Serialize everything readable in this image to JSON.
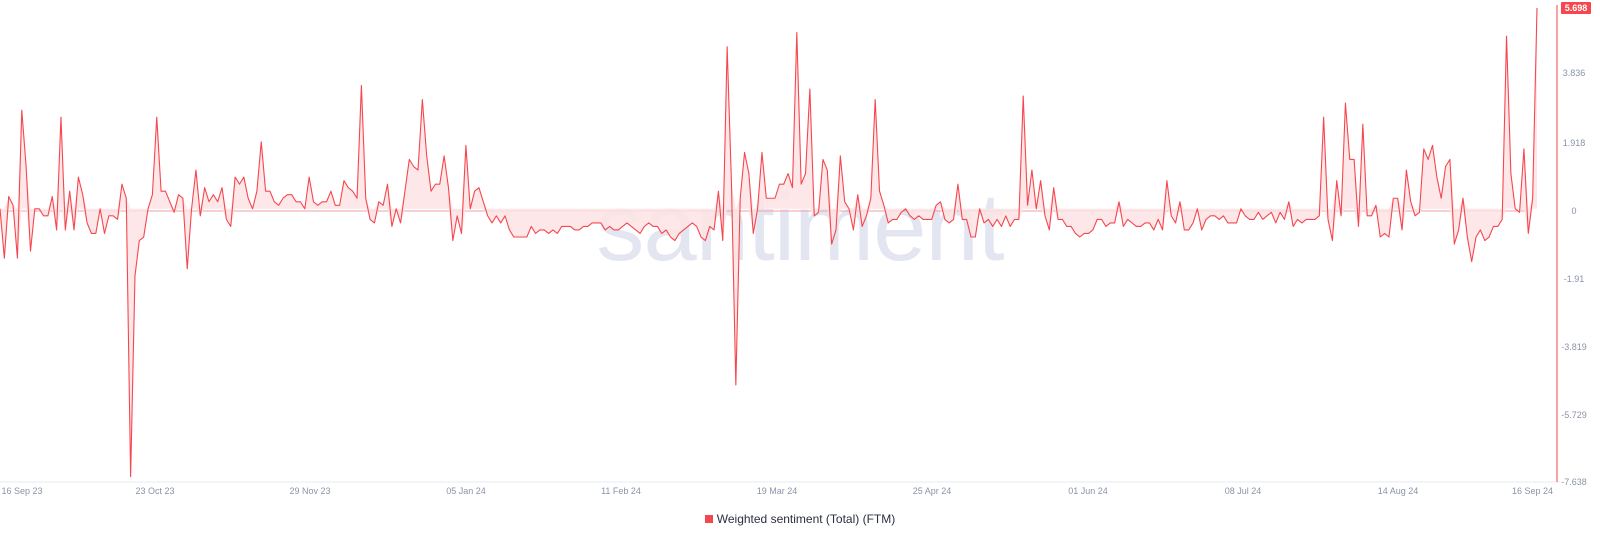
{
  "chart_data": {
    "type": "line",
    "legend": "Weighted sentiment (Total) (FTM)",
    "watermark": "santiment",
    "line_color": "#f5474f",
    "fill_color": "#fde3e4",
    "last_value_label": "5.698",
    "y_ticks": [
      "5.698",
      "3.836",
      "1.918",
      "0",
      "-1.91",
      "-3.819",
      "-5.729",
      "-7.638"
    ],
    "ylim": [
      -7.638,
      5.698
    ],
    "x_ticks": [
      "16 Sep 23",
      "23 Oct 23",
      "29 Nov 23",
      "05 Jan 24",
      "11 Feb 24",
      "19 Mar 24",
      "25 Apr 24",
      "01 Jun 24",
      "08 Jul 24",
      "14 Aug 24",
      "16 Sep 24"
    ],
    "x_start": "2023-09-16",
    "x_end": "2024-09-16",
    "series": [
      {
        "values": [
          0.0,
          -1.4,
          0.35,
          0.1,
          -1.4,
          2.8,
          1.2,
          -1.2,
          0.0,
          0.0,
          -0.2,
          -0.2,
          0.35,
          -0.6,
          2.6,
          -0.6,
          0.5,
          -0.6,
          0.9,
          0.4,
          -0.4,
          -0.7,
          -0.7,
          0.0,
          -0.7,
          -0.2,
          -0.2,
          -0.3,
          0.7,
          0.3,
          -7.6,
          -1.9,
          -0.9,
          -0.8,
          0.0,
          0.4,
          2.6,
          0.5,
          0.5,
          0.2,
          -0.1,
          0.4,
          0.3,
          -1.7,
          0.0,
          1.1,
          -0.2,
          0.6,
          0.2,
          0.4,
          0.2,
          0.6,
          -0.3,
          -0.5,
          0.9,
          0.7,
          0.9,
          0.3,
          0.0,
          0.5,
          1.9,
          0.5,
          0.5,
          0.2,
          0.1,
          0.3,
          0.4,
          0.4,
          0.2,
          0.2,
          0.0,
          0.9,
          0.2,
          0.1,
          0.2,
          0.2,
          0.5,
          0.1,
          0.1,
          0.8,
          0.6,
          0.5,
          0.3,
          3.5,
          0.3,
          -0.3,
          -0.4,
          0.2,
          0.1,
          0.7,
          -0.5,
          0.0,
          -0.4,
          0.5,
          1.4,
          1.2,
          1.1,
          3.1,
          1.5,
          0.5,
          0.7,
          0.7,
          1.5,
          0.6,
          -0.9,
          -0.2,
          -0.7,
          1.8,
          0.0,
          0.5,
          0.6,
          0.2,
          -0.2,
          -0.4,
          -0.2,
          -0.4,
          -0.2,
          -0.6,
          -0.8,
          -0.8,
          -0.8,
          -0.8,
          -0.5,
          -0.7,
          -0.6,
          -0.6,
          -0.7,
          -0.6,
          -0.7,
          -0.5,
          -0.5,
          -0.5,
          -0.6,
          -0.6,
          -0.5,
          -0.5,
          -0.4,
          -0.4,
          -0.4,
          -0.6,
          -0.5,
          -0.6,
          -0.6,
          -0.5,
          -0.4,
          -0.5,
          -0.6,
          -0.7,
          -0.5,
          -0.4,
          -0.5,
          -0.5,
          -0.7,
          -0.6,
          -0.8,
          -0.9,
          -0.7,
          -0.6,
          -0.5,
          -0.4,
          -0.5,
          -0.8,
          -0.9,
          -0.5,
          -0.6,
          0.5,
          -0.9,
          4.6,
          0.7,
          -5.0,
          0.3,
          1.6,
          1.0,
          -0.7,
          0.0,
          1.6,
          0.3,
          0.3,
          0.3,
          0.7,
          0.7,
          1.0,
          0.6,
          5.0,
          0.7,
          1.0,
          3.4,
          -0.2,
          -0.1,
          1.4,
          1.1,
          -1.0,
          -0.6,
          1.5,
          0.2,
          0.0,
          -0.6,
          0.4,
          -0.5,
          -0.2,
          0.3,
          3.1,
          0.5,
          0.1,
          -0.4,
          -0.3,
          -0.3,
          -0.1,
          0.0,
          -0.2,
          -0.3,
          -0.2,
          -0.3,
          -0.3,
          -0.3,
          0.1,
          0.2,
          -0.3,
          -0.4,
          -0.3,
          0.7,
          -0.3,
          -0.3,
          -0.8,
          -0.8,
          0.0,
          -0.4,
          -0.3,
          -0.5,
          -0.3,
          -0.5,
          -0.2,
          -0.5,
          -0.3,
          -0.3,
          3.2,
          0.1,
          1.1,
          0.0,
          0.8,
          -0.2,
          -0.6,
          0.6,
          -0.3,
          -0.3,
          -0.5,
          -0.5,
          -0.7,
          -0.8,
          -0.7,
          -0.7,
          -0.6,
          -0.3,
          -0.3,
          -0.5,
          -0.4,
          -0.4,
          0.2,
          -0.5,
          -0.3,
          -0.4,
          -0.5,
          -0.5,
          -0.4,
          -0.4,
          -0.6,
          -0.3,
          -0.6,
          0.8,
          -0.2,
          -0.4,
          0.2,
          -0.6,
          -0.6,
          -0.4,
          0.0,
          -0.6,
          -0.3,
          -0.2,
          -0.2,
          -0.3,
          -0.2,
          -0.4,
          -0.4,
          -0.4,
          0.0,
          -0.2,
          -0.3,
          -0.3,
          -0.1,
          -0.3,
          -0.2,
          -0.1,
          -0.4,
          -0.1,
          -0.3,
          0.2,
          -0.5,
          -0.3,
          -0.4,
          -0.3,
          -0.3,
          -0.3,
          -0.2,
          2.6,
          -0.3,
          -0.9,
          0.8,
          -0.2,
          3.0,
          1.4,
          1.4,
          -0.5,
          2.4,
          -0.2,
          -0.2,
          0.1,
          -0.8,
          -0.7,
          -0.8,
          0.3,
          0.3,
          -0.6,
          1.1,
          0.2,
          -0.2,
          -0.1,
          1.7,
          1.4,
          1.8,
          0.9,
          0.3,
          1.2,
          1.4,
          -1.0,
          -0.6,
          0.3,
          -0.8,
          -1.5,
          -0.8,
          -0.6,
          -0.9,
          -0.8,
          -0.5,
          -0.5,
          -0.3,
          4.9,
          1.0,
          0.0,
          -0.1,
          1.7,
          -0.7,
          0.3,
          5.7
        ]
      }
    ]
  }
}
